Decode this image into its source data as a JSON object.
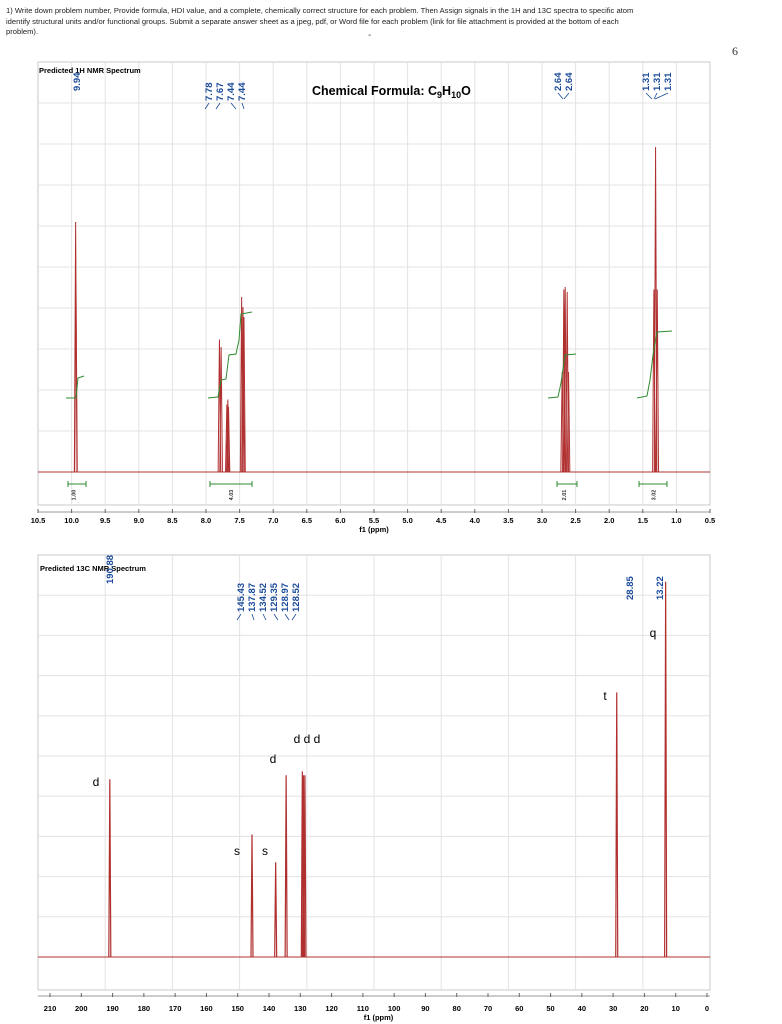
{
  "instructions": {
    "line1": "1) Write down problem number,  Provide formula, HDI value, and a complete, chemically correct structure for each problem. Then Assign signals in the 1H and 13C spectra to specific atom",
    "line2": "identify structural units and/or functional groups. Submit a separate answer sheet as a jpeg, pdf, or Word file for each problem (link for file attachment is provided at the bottom of each",
    "line3": "problem)."
  },
  "dash": "-",
  "page_number": "6",
  "chart_data": [
    {
      "type": "line",
      "title": "Predicted 1H NMR Spectrum",
      "formula": {
        "prefix": "Chemical Formula: C",
        "c_sub": "9",
        "mid": "H",
        "h_sub": "10",
        "suffix": "O"
      },
      "xlabel": "f1 (ppm)",
      "xlim": [
        10.5,
        0.5
      ],
      "ticks": [
        "10.5",
        "10.0",
        "9.5",
        "9.0",
        "8.5",
        "8.0",
        "7.5",
        "7.0",
        "6.5",
        "6.0",
        "5.5",
        "5.0",
        "4.5",
        "4.0",
        "3.5",
        "3.0",
        "2.5",
        "2.0",
        "1.5",
        "1.0",
        "0.5"
      ],
      "grid": true,
      "color": "#b03030",
      "peak_labels": [
        {
          "group": "9.9",
          "values": [
            "9.94"
          ]
        },
        {
          "group": "7.6",
          "values": [
            "7.78",
            "7.67",
            "7.44",
            "7.44"
          ]
        },
        {
          "group": "2.6",
          "values": [
            "2.64",
            "2.64"
          ]
        },
        {
          "group": "1.3",
          "values": [
            "1.31",
            "1.31",
            "1.31"
          ]
        }
      ],
      "integrals": [
        {
          "center": 9.94,
          "value": "1.00"
        },
        {
          "center": 7.6,
          "value": "4.03"
        },
        {
          "center": 2.64,
          "value": "2.01"
        },
        {
          "center": 1.31,
          "value": "3.02"
        }
      ],
      "peaks": [
        {
          "ppm": 9.94,
          "height": 1.0
        },
        {
          "ppm": 9.935,
          "height": 0.75
        },
        {
          "ppm": 7.8,
          "height": 0.53
        },
        {
          "ppm": 7.775,
          "height": 0.5
        },
        {
          "ppm": 7.69,
          "height": 0.27
        },
        {
          "ppm": 7.675,
          "height": 0.29
        },
        {
          "ppm": 7.665,
          "height": 0.26
        },
        {
          "ppm": 7.47,
          "height": 0.7
        },
        {
          "ppm": 7.45,
          "height": 0.66
        },
        {
          "ppm": 7.435,
          "height": 0.62
        },
        {
          "ppm": 2.7,
          "height": 0.4
        },
        {
          "ppm": 2.675,
          "height": 0.73
        },
        {
          "ppm": 2.655,
          "height": 0.74
        },
        {
          "ppm": 2.625,
          "height": 0.72
        },
        {
          "ppm": 2.605,
          "height": 0.4
        },
        {
          "ppm": 1.335,
          "height": 0.73
        },
        {
          "ppm": 1.31,
          "height": 1.3
        },
        {
          "ppm": 1.285,
          "height": 0.73
        }
      ]
    },
    {
      "type": "line",
      "title": "Predicted 13C NMR Spectrum",
      "xlabel": "f1 (ppm)",
      "xlim": [
        210,
        0
      ],
      "ticks": [
        "210",
        "200",
        "190",
        "180",
        "170",
        "160",
        "150",
        "140",
        "130",
        "120",
        "110",
        "100",
        "90",
        "80",
        "70",
        "60",
        "50",
        "40",
        "30",
        "20",
        "10",
        "0"
      ],
      "grid": true,
      "color": "#b03030",
      "peak_labels": [
        {
          "group": "190",
          "values": [
            "190.88"
          ]
        },
        {
          "group": "aromatic",
          "values": [
            "145.43",
            "137.87",
            "134.52",
            "129.35",
            "128.97",
            "128.52"
          ]
        },
        {
          "group": "28",
          "values": [
            "28.85"
          ]
        },
        {
          "group": "13",
          "values": [
            "13.22"
          ]
        }
      ],
      "peaks": [
        {
          "ppm": 190.88,
          "height": 0.45,
          "mult": "d"
        },
        {
          "ppm": 145.43,
          "height": 0.31,
          "mult": "s"
        },
        {
          "ppm": 137.87,
          "height": 0.24,
          "mult": "s"
        },
        {
          "ppm": 134.52,
          "height": 0.46,
          "mult": "d"
        },
        {
          "ppm": 129.35,
          "height": 0.47,
          "mult": "d"
        },
        {
          "ppm": 128.97,
          "height": 0.46,
          "mult": "d"
        },
        {
          "ppm": 128.52,
          "height": 0.46,
          "mult": "d"
        },
        {
          "ppm": 28.85,
          "height": 0.67,
          "mult": "t"
        },
        {
          "ppm": 13.22,
          "height": 0.95,
          "mult": "q"
        }
      ],
      "multiplicity_labels": [
        {
          "text": "d",
          "ppm": 190.88
        },
        {
          "text": "s",
          "ppm": 145.43
        },
        {
          "text": "s",
          "ppm": 137.87
        },
        {
          "text": "d",
          "ppm": 134.52
        },
        {
          "text": "d d d",
          "ppm": 128.97
        },
        {
          "text": "t",
          "ppm": 28.85
        },
        {
          "text": "q",
          "ppm": 13.22
        }
      ]
    }
  ]
}
